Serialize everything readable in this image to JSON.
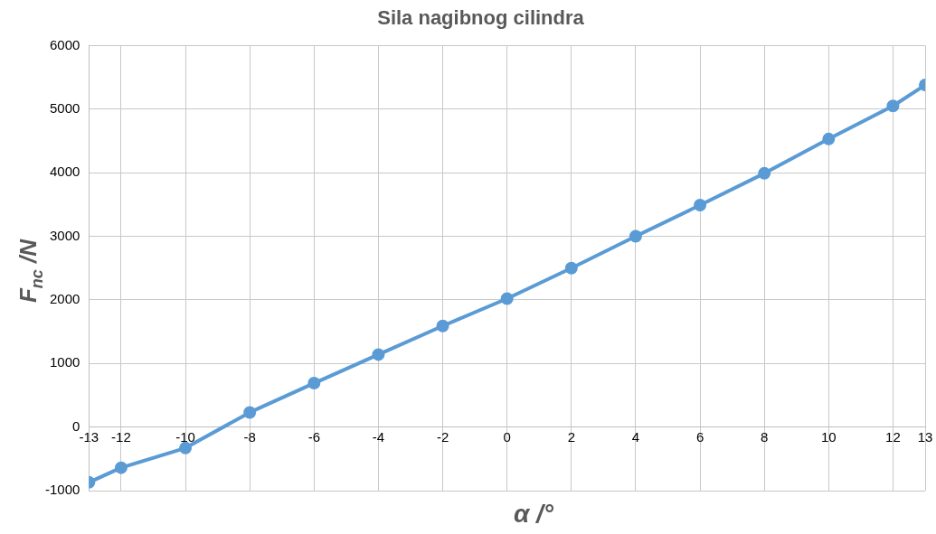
{
  "chart_data": {
    "type": "line",
    "title": "Sila nagibnog cilindra",
    "xlabel": "α /°",
    "ylabel": "F$_{nc}$ /N",
    "x": [
      -13,
      -12,
      -10,
      -8,
      -6,
      -4,
      -2,
      0,
      2,
      4,
      6,
      8,
      10,
      12,
      13
    ],
    "series": [
      {
        "color": "#5b9bd5",
        "values": [
          -870,
          -640,
          -330,
          230,
          690,
          1140,
          1590,
          2020,
          2500,
          3000,
          3490,
          3990,
          4530,
          5050,
          5380
        ]
      }
    ],
    "xlim": [
      -13,
      13
    ],
    "xticks": [
      -13,
      -12,
      -10,
      -8,
      -6,
      -4,
      -2,
      0,
      2,
      4,
      6,
      8,
      10,
      12,
      13
    ],
    "ylim": [
      -1000,
      6000
    ],
    "yticks": [
      -1000,
      0,
      1000,
      2000,
      3000,
      4000,
      5000,
      6000
    ],
    "grid": true,
    "marker": "circle",
    "line_style": "solid",
    "legend": false
  }
}
